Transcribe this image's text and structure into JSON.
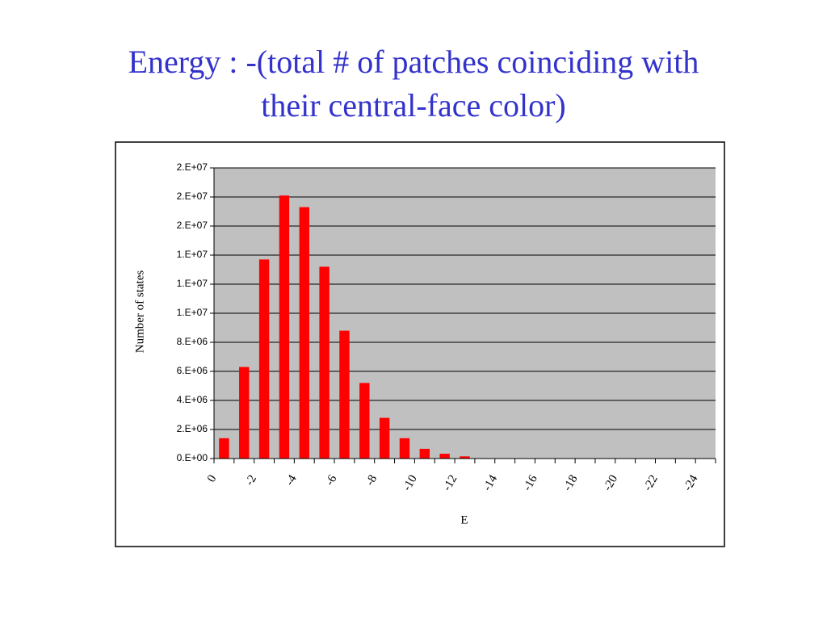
{
  "title_lines": [
    "Energy : -(total # of patches coinciding with",
    "their central-face color)"
  ],
  "chart_data": {
    "type": "bar",
    "x_label": "E",
    "y_label": "Number of states",
    "categories": [
      "0",
      null,
      "-2",
      null,
      "-4",
      null,
      "-6",
      null,
      "-8",
      null,
      "-10",
      null,
      "-12",
      null,
      "-14",
      null,
      "-16",
      null,
      "-18",
      null,
      "-20",
      null,
      "-22",
      null,
      "-24"
    ],
    "values": [
      1400000,
      6300000,
      13700000,
      18100000,
      17300000,
      13200000,
      8800000,
      5200000,
      2800000,
      1400000,
      670000,
      330000,
      150000,
      30000,
      0,
      0,
      0,
      0,
      0,
      0,
      0,
      0,
      0,
      0,
      0
    ],
    "color": "#ff0000",
    "ylim": [
      0,
      20000000
    ],
    "yticks": [
      {
        "value": 0,
        "label": "0.E+00"
      },
      {
        "value": 2000000,
        "label": "2.E+06"
      },
      {
        "value": 4000000,
        "label": "4.E+06"
      },
      {
        "value": 6000000,
        "label": "6.E+06"
      },
      {
        "value": 8000000,
        "label": "8.E+06"
      },
      {
        "value": 10000000,
        "label": "1.E+07"
      },
      {
        "value": 12000000,
        "label": "1.E+07"
      },
      {
        "value": 14000000,
        "label": "1.E+07"
      },
      {
        "value": 16000000,
        "label": "2.E+07"
      },
      {
        "value": 18000000,
        "label": "2.E+07"
      },
      {
        "value": 20000000,
        "label": "2.E+07"
      }
    ],
    "grid": true,
    "plot_background": "#c0c0c0"
  }
}
